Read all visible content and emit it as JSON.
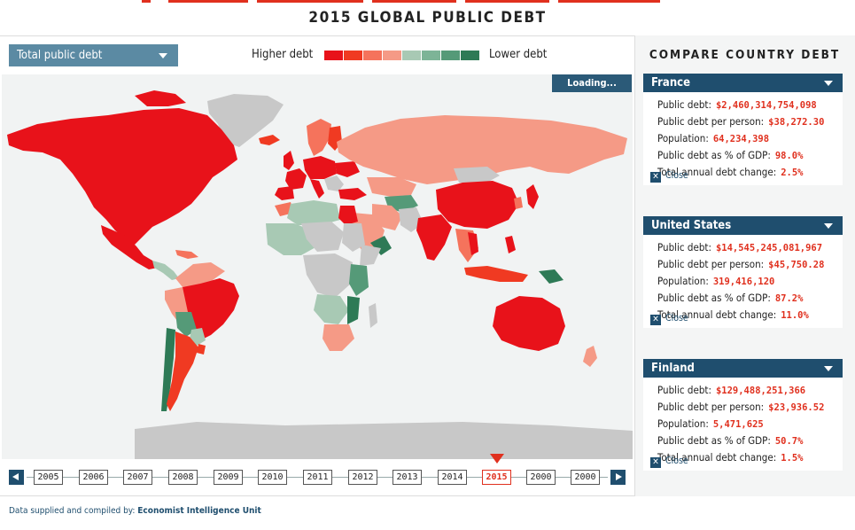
{
  "page": {
    "title": "2015 GLOBAL PUBLIC DEBT"
  },
  "controls": {
    "dropdown_label": "Total public debt",
    "legend_higher": "Higher debt",
    "legend_lower": "Lower debt",
    "legend_colors": [
      "#e8121a",
      "#f03a22",
      "#f5735c",
      "#f59a86",
      "#c8d0c8",
      "#a8c9b4",
      "#7db497",
      "#559a78",
      "#2e7a56"
    ],
    "loading_label": "Loading..."
  },
  "colors": {
    "high": "#e8121a",
    "mid_high": "#f5735c",
    "mid": "#f59a86",
    "no_data": "#c8c8c8",
    "low": "#a8c9b4",
    "lower": "#559a78",
    "lowest": "#2e7a56",
    "panel_blue": "#1f4e6e",
    "accent_red": "#e0301e"
  },
  "timeline": {
    "years": [
      "2005",
      "2006",
      "2007",
      "2008",
      "2009",
      "2010",
      "2011",
      "2012",
      "2013",
      "2014",
      "2015",
      "2000",
      "2000"
    ],
    "selected_year": "2015"
  },
  "footer": {
    "label": "Data supplied and compiled by:",
    "source": "Economist Intelligence Unit"
  },
  "compare": {
    "title": "COMPARE COUNTRY DEBT",
    "close_label": "Close",
    "field_labels": {
      "debt": "Public debt:",
      "per_person": "Public debt per person:",
      "population": "Population:",
      "pct_gdp": "Public debt as % of GDP:",
      "change": "Total annual debt change:"
    },
    "countries": [
      {
        "name": "France",
        "debt": "$2,460,314,754,098",
        "per_person": "$38,272.30",
        "population": "64,234,398",
        "pct_gdp": "98.0%",
        "change": "2.5%"
      },
      {
        "name": "United States",
        "debt": "$14,545,245,081,967",
        "per_person": "$45,750.28",
        "population": "319,416,120",
        "pct_gdp": "87.2%",
        "change": "11.0%"
      },
      {
        "name": "Finland",
        "debt": "$129,488,251,366",
        "per_person": "$23,936.52",
        "population": "5,471,625",
        "pct_gdp": "50.7%",
        "change": "1.5%"
      }
    ]
  }
}
